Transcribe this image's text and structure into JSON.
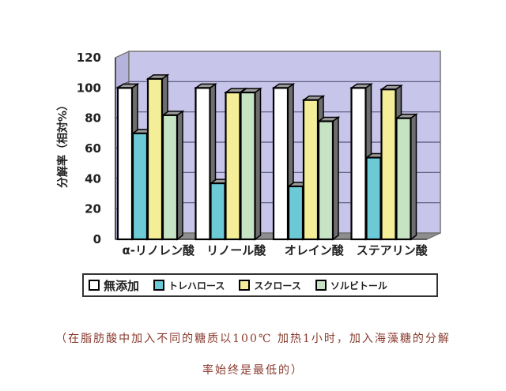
{
  "chart_data": {
    "type": "bar",
    "style": "3d-clustered-column",
    "title": "",
    "xlabel": "",
    "ylabel": "分解率（相対%）",
    "ylim": [
      0,
      120
    ],
    "yticks": [
      0,
      20,
      40,
      60,
      80,
      100,
      120
    ],
    "grid": true,
    "legend_position": "bottom",
    "categories": [
      "α-リノレン酸",
      "リノール酸",
      "オレイン酸",
      "ステアリン酸"
    ],
    "series": [
      {
        "name": "無添加",
        "color": "#ffffff",
        "values": [
          100,
          100,
          100,
          100
        ]
      },
      {
        "name": "トレハロース",
        "color": "#6cc9d6",
        "values": [
          70,
          37,
          35,
          54
        ]
      },
      {
        "name": "スクロース",
        "color": "#f4ee98",
        "values": [
          106,
          97,
          92,
          99
        ]
      },
      {
        "name": "ソルビトール",
        "color": "#c6e3c4",
        "values": [
          82,
          97,
          78,
          80
        ]
      }
    ],
    "colors": {
      "plot_wall": "#c8c5ea",
      "floor": "#8e8e8e",
      "gridline": "#555577"
    }
  },
  "caption": {
    "line1": "（在脂肪酸中加入不同的糖质以100℃ 加热1小时，加入海藻糖的分解",
    "line2": "率始终是最低的）"
  }
}
